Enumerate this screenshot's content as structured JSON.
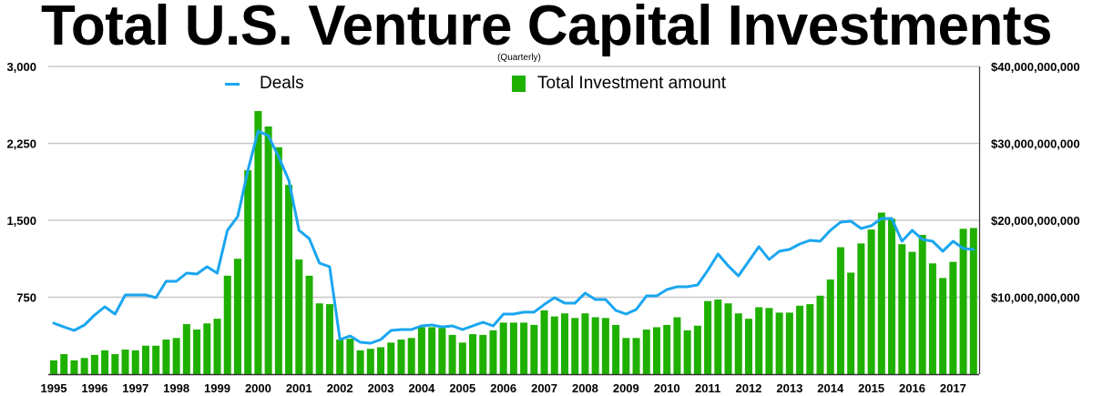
{
  "title": "Total U.S. Venture Capital Investments",
  "subtitle": "(Quarterly)",
  "legend": {
    "deals": "Deals",
    "investment": "Total Investment amount"
  },
  "colors": {
    "deals_line": "#1aa6f0",
    "bars": "#1fb000",
    "grid": "#c8c8c8",
    "axis": "#333333"
  },
  "left_axis": {
    "ticks": [
      {
        "value": 0,
        "label": ""
      },
      {
        "value": 750,
        "label": "750"
      },
      {
        "value": 1500,
        "label": "1,500"
      },
      {
        "value": 2250,
        "label": "2,250"
      },
      {
        "value": 3000,
        "label": "3,000"
      }
    ]
  },
  "right_axis": {
    "ticks": [
      {
        "value": 10000000000,
        "label": "$10,000,000,000"
      },
      {
        "value": 20000000000,
        "label": "$20,000,000,000"
      },
      {
        "value": 30000000000,
        "label": "$30,000,000,000"
      },
      {
        "value": 40000000000,
        "label": "$40,000,000,000"
      }
    ]
  },
  "x_labels": [
    "1995",
    "1996",
    "1997",
    "1998",
    "1999",
    "2000",
    "2001",
    "2002",
    "2003",
    "2004",
    "2005",
    "2006",
    "2007",
    "2008",
    "2009",
    "2010",
    "2011",
    "2012",
    "2013",
    "2014",
    "2015",
    "2016",
    "2017"
  ],
  "chart_data": {
    "type": "bar",
    "title": "Total U.S. Venture Capital Investments",
    "subtitle": "(Quarterly)",
    "xlabel": "",
    "ylabel": "Deals",
    "y2label": "Total Investment amount (USD)",
    "ylim": [
      0,
      3000
    ],
    "y2lim": [
      0,
      40000000000
    ],
    "grid": true,
    "legend_position": "top",
    "x_tick_labels": [
      "1995",
      "1996",
      "1997",
      "1998",
      "1999",
      "2000",
      "2001",
      "2002",
      "2003",
      "2004",
      "2005",
      "2006",
      "2007",
      "2008",
      "2009",
      "2010",
      "2011",
      "2012",
      "2013",
      "2014",
      "2015",
      "2016",
      "2017"
    ],
    "categories": [
      "1995 Q1",
      "1995 Q2",
      "1995 Q3",
      "1995 Q4",
      "1996 Q1",
      "1996 Q2",
      "1996 Q3",
      "1996 Q4",
      "1997 Q1",
      "1997 Q2",
      "1997 Q3",
      "1997 Q4",
      "1998 Q1",
      "1998 Q2",
      "1998 Q3",
      "1998 Q4",
      "1999 Q1",
      "1999 Q2",
      "1999 Q3",
      "1999 Q4",
      "2000 Q1",
      "2000 Q2",
      "2000 Q3",
      "2000 Q4",
      "2001 Q1",
      "2001 Q2",
      "2001 Q3",
      "2001 Q4",
      "2002 Q1",
      "2002 Q2",
      "2002 Q3",
      "2002 Q4",
      "2003 Q1",
      "2003 Q2",
      "2003 Q3",
      "2003 Q4",
      "2004 Q1",
      "2004 Q2",
      "2004 Q3",
      "2004 Q4",
      "2005 Q1",
      "2005 Q2",
      "2005 Q3",
      "2005 Q4",
      "2006 Q1",
      "2006 Q2",
      "2006 Q3",
      "2006 Q4",
      "2007 Q1",
      "2007 Q2",
      "2007 Q3",
      "2007 Q4",
      "2008 Q1",
      "2008 Q2",
      "2008 Q3",
      "2008 Q4",
      "2009 Q1",
      "2009 Q2",
      "2009 Q3",
      "2009 Q4",
      "2010 Q1",
      "2010 Q2",
      "2010 Q3",
      "2010 Q4",
      "2011 Q1",
      "2011 Q2",
      "2011 Q3",
      "2011 Q4",
      "2012 Q1",
      "2012 Q2",
      "2012 Q3",
      "2012 Q4",
      "2013 Q1",
      "2013 Q2",
      "2013 Q3",
      "2013 Q4",
      "2014 Q1",
      "2014 Q2",
      "2014 Q3",
      "2014 Q4",
      "2015 Q1",
      "2015 Q2",
      "2015 Q3",
      "2015 Q4",
      "2016 Q1",
      "2016 Q2",
      "2016 Q3",
      "2016 Q4",
      "2017 Q1",
      "2017 Q2",
      "2017 Q3"
    ],
    "series": [
      {
        "name": "Total Investment amount",
        "type": "bar",
        "axis": "right",
        "unit": "billion USD",
        "values": [
          1.8,
          2.6,
          1.8,
          2.1,
          2.5,
          3.1,
          2.6,
          3.2,
          3.1,
          3.7,
          3.7,
          4.5,
          4.7,
          6.5,
          5.8,
          6.6,
          7.2,
          12.8,
          15.0,
          26.5,
          34.2,
          32.2,
          29.5,
          24.6,
          14.9,
          12.8,
          9.2,
          9.1,
          4.5,
          4.6,
          3.1,
          3.3,
          3.5,
          4.1,
          4.5,
          4.7,
          6.1,
          6.1,
          6.0,
          5.1,
          4.1,
          5.2,
          5.1,
          5.7,
          6.7,
          6.7,
          6.7,
          6.4,
          8.3,
          7.5,
          7.9,
          7.3,
          7.9,
          7.4,
          7.3,
          6.4,
          4.7,
          4.7,
          5.8,
          6.1,
          6.4,
          7.4,
          5.7,
          6.3,
          9.5,
          9.7,
          9.2,
          7.9,
          7.2,
          8.7,
          8.6,
          8.0,
          8.0,
          8.9,
          9.1,
          10.2,
          12.3,
          16.5,
          13.2,
          17.0,
          18.8,
          21.0,
          20.2,
          16.9,
          15.9,
          18.1,
          14.4,
          12.5,
          14.6,
          18.9,
          19.0
        ]
      },
      {
        "name": "Deals",
        "type": "line",
        "axis": "left",
        "values": [
          497,
          461,
          426,
          479,
          577,
          657,
          586,
          772,
          772,
          772,
          746,
          905,
          905,
          985,
          976,
          1047,
          985,
          1402,
          1536,
          1988,
          2370,
          2325,
          2121,
          1890,
          1402,
          1322,
          1083,
          1047,
          337,
          373,
          311,
          302,
          337,
          426,
          435,
          435,
          470,
          479,
          461,
          470,
          435,
          470,
          506,
          470,
          586,
          586,
          604,
          604,
          680,
          746,
          692,
          692,
          790,
          728,
          728,
          621,
          586,
          630,
          763,
          763,
          825,
          852,
          852,
          870,
          1012,
          1172,
          1056,
          958,
          1101,
          1243,
          1118,
          1198,
          1216,
          1269,
          1305,
          1296,
          1402,
          1482,
          1491,
          1420,
          1447,
          1518,
          1518,
          1296,
          1402,
          1314,
          1296,
          1198,
          1296,
          1225,
          1216
        ]
      }
    ]
  }
}
